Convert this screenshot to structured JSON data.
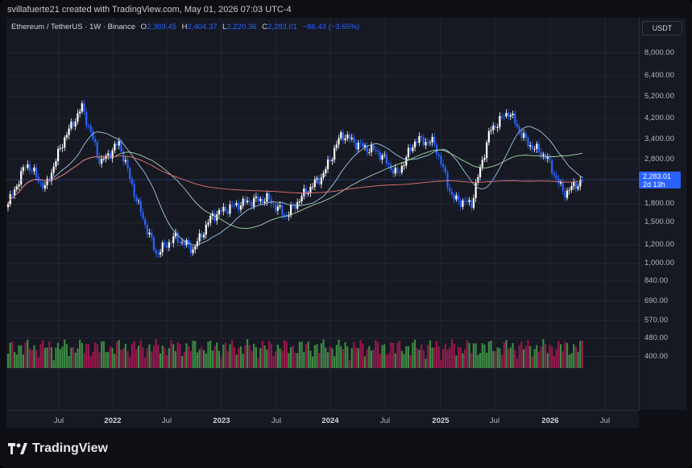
{
  "header": {
    "attribution": "svillafuerte21 created with TradingView.com, May 01, 2026 07:03 UTC-4"
  },
  "legend": {
    "symbol": "Ethereum / TetherUS · 1W · Binance",
    "o_label": "O",
    "o_value": "2,369.45",
    "h_label": "H",
    "h_value": "2,404.37",
    "l_label": "L",
    "l_value": "2,220.36",
    "c_label": "C",
    "c_value": "2,283.01",
    "change": "−86.43 (−3.65%)"
  },
  "price_axis": {
    "currency": "USDT",
    "current_price": "2,283.01",
    "countdown": "2d 13h"
  },
  "brand": {
    "name": "TradingView"
  },
  "colors": {
    "up": "#ffffff",
    "down": "#2962ff",
    "ma_red": "#e57373",
    "ma_green": "#a5d6a7",
    "ma_blue": "#9ec7e8",
    "vol_up": "#4caf50",
    "vol_down": "#c2185b"
  },
  "chart_data": {
    "type": "candlestick",
    "yscale": "log",
    "ylim": [
      380,
      9000
    ],
    "y_ticks": [
      "8,000.00",
      "6,400.00",
      "5,200.00",
      "4,200.00",
      "3,400.00",
      "2,800.00",
      "2,300.00",
      "1,800.00",
      "1,500.00",
      "1,200.00",
      "1,000.00",
      "840.00",
      "690.00",
      "570.00",
      "480.00",
      "400.00"
    ],
    "x_ticks": [
      "Jul",
      "2022",
      "Jul",
      "2023",
      "Jul",
      "2024",
      "Jul",
      "2025",
      "Jul",
      "2026",
      "Jul"
    ],
    "x_ticks_year": [
      false,
      true,
      false,
      true,
      false,
      true,
      false,
      true,
      false,
      true,
      false
    ],
    "series": [
      {
        "name": "ETH/USDT close (approx.)",
        "x": [
          "2021-03",
          "2021-05",
          "2021-07",
          "2021-09",
          "2021-11",
          "2022-01",
          "2022-03",
          "2022-05",
          "2022-07",
          "2022-09",
          "2022-11",
          "2023-01",
          "2023-03",
          "2023-05",
          "2023-07",
          "2023-09",
          "2023-11",
          "2024-01",
          "2024-03",
          "2024-05",
          "2024-07",
          "2024-09",
          "2024-11",
          "2025-01",
          "2025-03",
          "2025-05",
          "2025-07",
          "2025-09",
          "2025-11",
          "2026-01",
          "2026-03",
          "2026-05"
        ],
        "values": [
          1800,
          2700,
          2100,
          3400,
          4700,
          2700,
          3300,
          1800,
          1100,
          1300,
          1150,
          1600,
          1750,
          1850,
          1900,
          1600,
          2000,
          2400,
          3600,
          3200,
          3000,
          2400,
          3400,
          3300,
          1900,
          1800,
          3700,
          4500,
          3300,
          2900,
          2000,
          2283
        ]
      }
    ]
  }
}
